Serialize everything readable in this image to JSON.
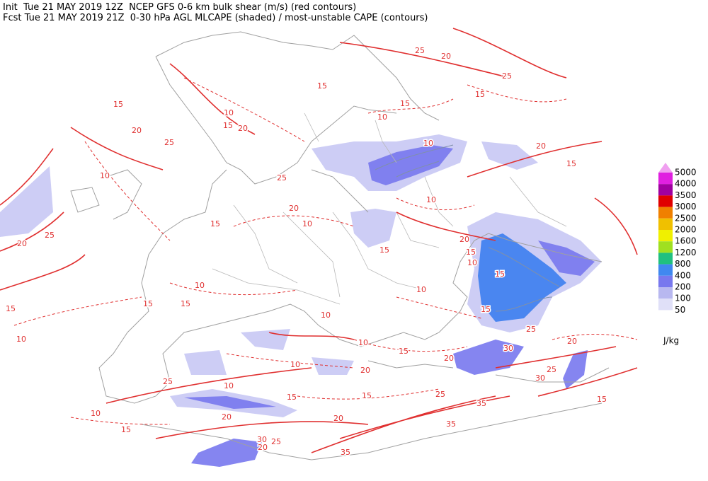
{
  "header": {
    "line1": "Init  Tue 21 MAY 2019 12Z  NCEP GFS 0-6 km bulk shear (m/s) (red contours)",
    "line2": "Fcst Tue 21 MAY 2019 21Z  0-30 hPa AGL MLCAPE (shaded) / most-unstable CAPE (contours)"
  },
  "legend": {
    "levels": [
      5000,
      4000,
      3500,
      3000,
      2500,
      2000,
      1600,
      1200,
      800,
      400,
      200,
      100,
      50
    ],
    "colors": [
      "#f0a0f0",
      "#e020e0",
      "#a000a0",
      "#e00000",
      "#f08000",
      "#f0c000",
      "#f0f000",
      "#a0e020",
      "#20c080",
      "#4088f0",
      "#7878ee",
      "#b8b8f0",
      "#e0e0f8"
    ],
    "unit": "J/kg"
  },
  "contour_labels": [
    25,
    20,
    25,
    15,
    15,
    15,
    10,
    15,
    20,
    20,
    25,
    10,
    25,
    25,
    20,
    20,
    15,
    10,
    10,
    15,
    10,
    20,
    15,
    10,
    20,
    15,
    10,
    15,
    15,
    25,
    30,
    20,
    25,
    30,
    15,
    10,
    15,
    15,
    15,
    10,
    10,
    15,
    25,
    10,
    10,
    20,
    20,
    15,
    15,
    25,
    35,
    20,
    20,
    35,
    10,
    15,
    30,
    20,
    25,
    35,
    15,
    10,
    10
  ]
}
